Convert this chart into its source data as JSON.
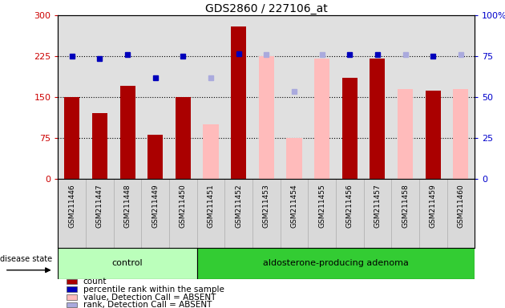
{
  "title": "GDS2860 / 227106_at",
  "samples": [
    "GSM211446",
    "GSM211447",
    "GSM211448",
    "GSM211449",
    "GSM211450",
    "GSM211451",
    "GSM211452",
    "GSM211453",
    "GSM211454",
    "GSM211455",
    "GSM211456",
    "GSM211457",
    "GSM211458",
    "GSM211459",
    "GSM211460"
  ],
  "detection_call": [
    "P",
    "P",
    "P",
    "P",
    "P",
    "A",
    "P",
    "A",
    "A",
    "A",
    "P",
    "P",
    "A",
    "P",
    "A"
  ],
  "count_values": [
    150,
    120,
    170,
    80,
    150,
    null,
    280,
    null,
    null,
    null,
    185,
    220,
    null,
    162,
    null
  ],
  "rank_values_left": [
    225,
    220,
    228,
    185,
    225,
    null,
    230,
    null,
    null,
    null,
    228,
    228,
    null,
    225,
    null
  ],
  "value_absent": [
    null,
    null,
    null,
    null,
    null,
    100,
    null,
    225,
    75,
    220,
    null,
    null,
    165,
    null,
    165
  ],
  "rank_absent_left": [
    null,
    null,
    null,
    null,
    null,
    185,
    null,
    228,
    160,
    228,
    null,
    null,
    228,
    null,
    228
  ],
  "ylim_left": [
    0,
    300
  ],
  "ylim_right": [
    0,
    100
  ],
  "yticks_left": [
    0,
    75,
    150,
    225,
    300
  ],
  "yticks_right": [
    0,
    25,
    50,
    75,
    100
  ],
  "bar_color_present": "#aa0000",
  "bar_color_absent": "#ffbbbb",
  "dot_color_present": "#0000bb",
  "dot_color_absent": "#aaaadd",
  "control_bg": "#bbffbb",
  "adenoma_bg": "#33cc33",
  "group_label_control": "control",
  "group_label_adenoma": "aldosterone-producing adenoma",
  "disease_state_label": "disease state",
  "n_control": 5,
  "n_adenoma": 10,
  "legend_items": [
    {
      "label": "count",
      "color": "#aa0000"
    },
    {
      "label": "percentile rank within the sample",
      "color": "#0000bb"
    },
    {
      "label": "value, Detection Call = ABSENT",
      "color": "#ffbbbb"
    },
    {
      "label": "rank, Detection Call = ABSENT",
      "color": "#aaaadd"
    }
  ]
}
